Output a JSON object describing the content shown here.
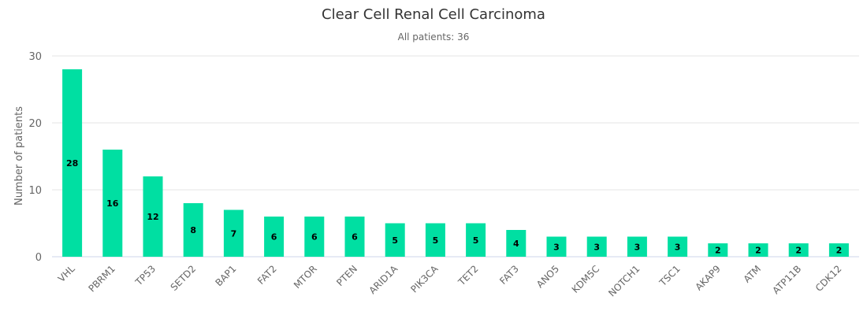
{
  "chart_data": {
    "type": "bar",
    "title": "Clear Cell Renal Cell Carcinoma",
    "subtitle": "All patients: 36",
    "xlabel": "",
    "ylabel": "Number of patients",
    "ylim": [
      0,
      30
    ],
    "yticks": [
      0,
      10,
      20,
      30
    ],
    "grid": true,
    "legend": "none",
    "bar_color": "#00dfa2",
    "categories": [
      "VHL",
      "PBRM1",
      "TP53",
      "SETD2",
      "BAP1",
      "FAT2",
      "MTOR",
      "PTEN",
      "ARID1A",
      "PIK3CA",
      "TET2",
      "FAT3",
      "ANO5",
      "KDM5C",
      "NOTCH1",
      "TSC1",
      "AKAP9",
      "ATM",
      "ATP11B",
      "CDK12"
    ],
    "values": [
      28,
      16,
      12,
      8,
      7,
      6,
      6,
      6,
      5,
      5,
      5,
      4,
      3,
      3,
      3,
      3,
      2,
      2,
      2,
      2
    ]
  }
}
